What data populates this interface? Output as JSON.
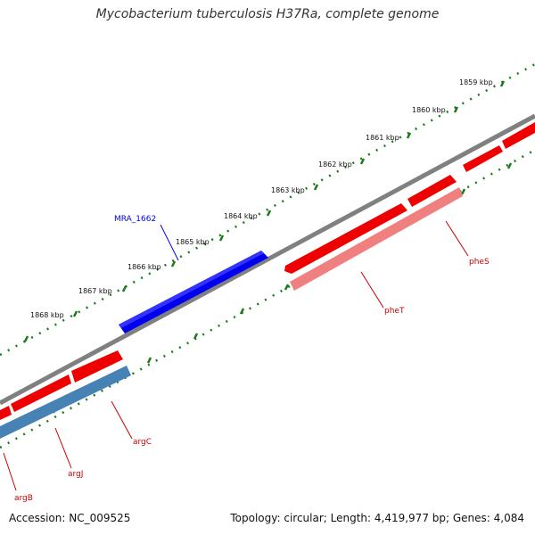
{
  "title": "Mycobacterium tuberculosis H37Ra, complete genome",
  "footer": {
    "accession": "Accession: NC_009525",
    "summary": "Topology: circular; Length: 4,419,977 bp; Genes: 4,084"
  },
  "ticks": [
    "1859 kbp",
    "1860 kbp",
    "1861 kbp",
    "1862 kbp",
    "1863 kbp",
    "1864 kbp",
    "1865 kbp",
    "1866 kbp",
    "1867 kbp",
    "1868 kbp"
  ],
  "genes": [
    {
      "name": "MRA_1662",
      "strand": "plus",
      "color": "#0000ee"
    },
    {
      "name": "pheS",
      "strand": "minus",
      "color": "#cc0000"
    },
    {
      "name": "pheT",
      "strand": "minus",
      "color": "#cc0000"
    },
    {
      "name": "argC",
      "strand": "minus",
      "color": "#cc0000"
    },
    {
      "name": "argJ",
      "strand": "minus",
      "color": "#cc0000"
    },
    {
      "name": "argB",
      "strand": "minus",
      "color": "#cc0000"
    }
  ],
  "colors": {
    "backbone": "#808080",
    "tick_ring": "#1a7a1a",
    "plus_feature": "#0000ee",
    "minus_feature": "#ff0000",
    "minus_feature_light": "#f08080",
    "highlight_feature": "#4682b4"
  }
}
